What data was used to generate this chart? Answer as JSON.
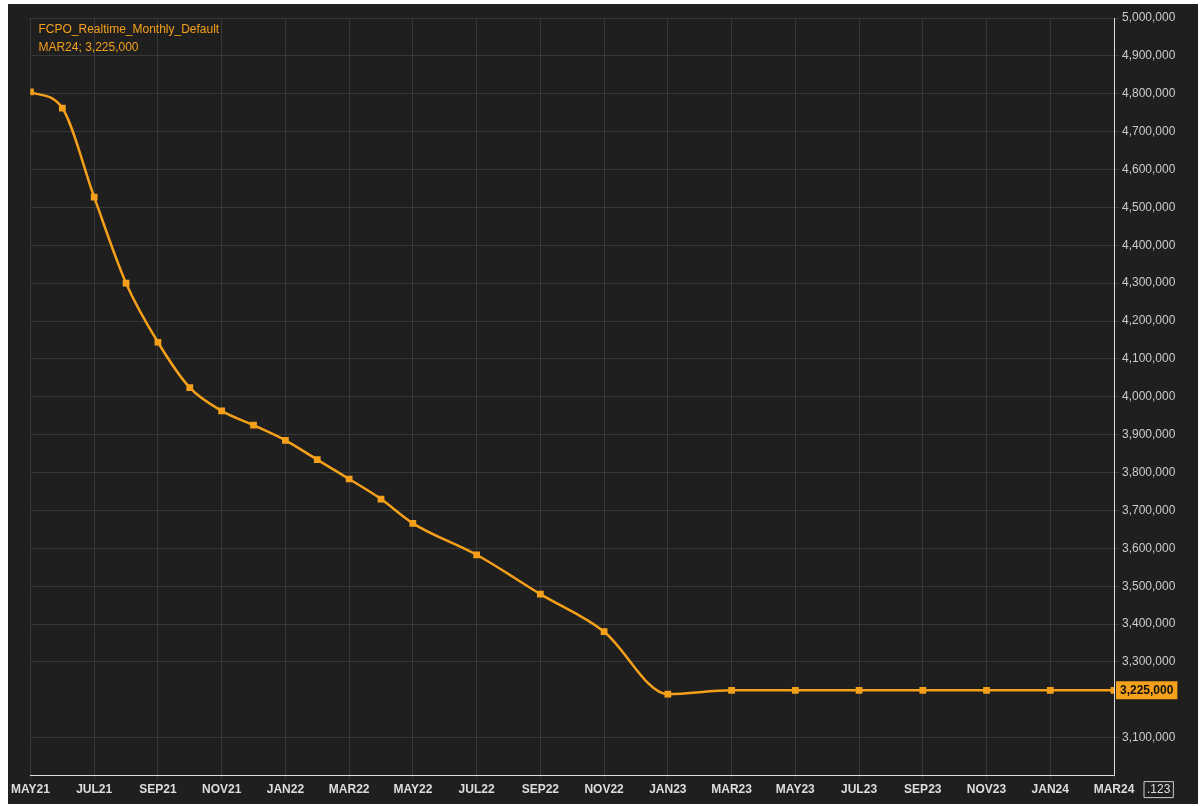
{
  "chart_data": {
    "type": "line",
    "title": "FCPO_Realtime_Monthly_Default",
    "subtitle": "MAR24; 3,225,000",
    "x": [
      "2021-05",
      "2021-06",
      "2021-07",
      "2021-08",
      "2021-09",
      "2021-10",
      "2021-11",
      "2021-12",
      "2022-01",
      "2022-02",
      "2022-03",
      "2022-04",
      "2022-05",
      "2022-07",
      "2022-09",
      "2022-11",
      "2023-01",
      "2023-03",
      "2023-05",
      "2023-07",
      "2023-09",
      "2023-11",
      "2024-01",
      "2024-03"
    ],
    "series": [
      {
        "color": "#f5a01a",
        "values": [
          4805000,
          4762000,
          4527000,
          4300000,
          4144000,
          4024000,
          3963000,
          3925000,
          3885000,
          3834000,
          3783000,
          3730000,
          3666000,
          3583000,
          3479000,
          3380000,
          3215000,
          3225000,
          3225000,
          3225000,
          3225000,
          3225000,
          3225000,
          3225000
        ],
        "value_labels": [
          null,
          null,
          null,
          null,
          null,
          null,
          null,
          null,
          null,
          null,
          null,
          null,
          null,
          null,
          null,
          null,
          null,
          null,
          null,
          null,
          null,
          null,
          null,
          "3,225,000"
        ]
      }
    ],
    "xlim": [
      "2021-05",
      "2024-03"
    ],
    "xticks": [
      {
        "value": "2021-05",
        "label": "MAY21"
      },
      {
        "value": "2021-07",
        "label": "JUL21"
      },
      {
        "value": "2021-09",
        "label": "SEP21"
      },
      {
        "value": "2021-11",
        "label": "NOV21"
      },
      {
        "value": "2022-01",
        "label": "JAN22"
      },
      {
        "value": "2022-03",
        "label": "MAR22"
      },
      {
        "value": "2022-05",
        "label": "MAY22"
      },
      {
        "value": "2022-07",
        "label": "JUL22"
      },
      {
        "value": "2022-09",
        "label": "SEP22"
      },
      {
        "value": "2022-11",
        "label": "NOV22"
      },
      {
        "value": "2023-01",
        "label": "JAN23"
      },
      {
        "value": "2023-03",
        "label": "MAR23"
      },
      {
        "value": "2023-05",
        "label": "MAY23"
      },
      {
        "value": "2023-07",
        "label": "JUL23"
      },
      {
        "value": "2023-09",
        "label": "SEP23"
      },
      {
        "value": "2023-11",
        "label": "NOV23"
      },
      {
        "value": "2024-01",
        "label": "JAN24"
      },
      {
        "value": "2024-03",
        "label": "MAR24"
      }
    ],
    "ylim": [
      3000000,
      5000000
    ],
    "yticks": [
      {
        "value": 3100000,
        "label": "3,100,000"
      },
      {
        "value": 3300000,
        "label": "3,300,000"
      },
      {
        "value": 3400000,
        "label": "3,400,000"
      },
      {
        "value": 3500000,
        "label": "3,500,000"
      },
      {
        "value": 3600000,
        "label": "3,600,000"
      },
      {
        "value": 3700000,
        "label": "3,700,000"
      },
      {
        "value": 3800000,
        "label": "3,800,000"
      },
      {
        "value": 3900000,
        "label": "3,900,000"
      },
      {
        "value": 4000000,
        "label": "4,000,000"
      },
      {
        "value": 4100000,
        "label": "4,100,000"
      },
      {
        "value": 4200000,
        "label": "4,200,000"
      },
      {
        "value": 4300000,
        "label": "4,300,000"
      },
      {
        "value": 4400000,
        "label": "4,400,000"
      },
      {
        "value": 4500000,
        "label": "4,500,000"
      },
      {
        "value": 4600000,
        "label": "4,600,000"
      },
      {
        "value": 4700000,
        "label": "4,700,000"
      },
      {
        "value": 4800000,
        "label": "4,800,000"
      },
      {
        "value": 4900000,
        "label": "4,900,000"
      },
      {
        "value": 5000000,
        "label": "5,000,000"
      }
    ],
    "annotations": [
      ".123"
    ],
    "grid": true,
    "legend": false,
    "marker": "square",
    "line_style": "solid"
  }
}
